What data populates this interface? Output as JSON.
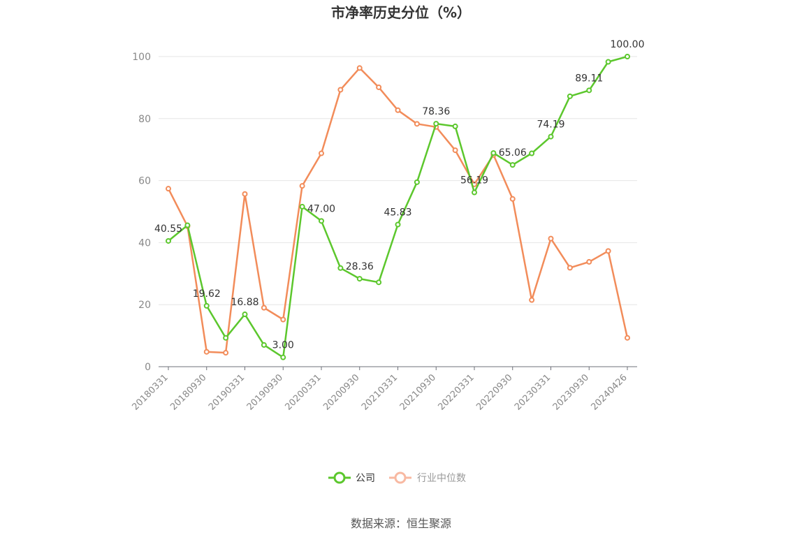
{
  "chart_data": {
    "type": "line",
    "title": "市净率历史分位（%）",
    "ylim": [
      0,
      100
    ],
    "yticks": [
      0,
      20,
      40,
      60,
      80,
      100
    ],
    "x": [
      "20180331",
      "20180630",
      "20180930",
      "20181231",
      "20190331",
      "20190630",
      "20190930",
      "20191231",
      "20200331",
      "20200630",
      "20200930",
      "20201231",
      "20210331",
      "20210630",
      "20210930",
      "20211231",
      "20220331",
      "20220630",
      "20220930",
      "20221231",
      "20230331",
      "20230630",
      "20230930",
      "20231231",
      "20240426"
    ],
    "xtick_labels": [
      "20180331",
      "20180930",
      "20190331",
      "20190930",
      "20200331",
      "20200930",
      "20210331",
      "20210930",
      "20220331",
      "20220930",
      "20230331",
      "20230930",
      "20240426"
    ],
    "grid": true,
    "legend_position": "bottom",
    "series": [
      {
        "name": "公司",
        "color": "#5cc72d",
        "values": [
          40.55,
          45.6,
          19.62,
          9.3,
          16.88,
          7.0,
          3.0,
          51.6,
          47.0,
          31.8,
          28.36,
          27.2,
          45.83,
          59.5,
          78.36,
          77.5,
          56.19,
          68.9,
          65.06,
          68.8,
          74.19,
          87.2,
          89.11,
          98.3,
          100.0
        ],
        "labels": [
          "40.55",
          "",
          "19.62",
          "",
          "16.88",
          "",
          "3.00",
          "",
          "47.00",
          "",
          "28.36",
          "",
          "45.83",
          "",
          "78.36",
          "",
          "56.19",
          "",
          "65.06",
          "",
          "74.19",
          "",
          "89.11",
          "",
          "100.00"
        ]
      },
      {
        "name": "行业中位数",
        "color": "#f28c5a",
        "values": [
          57.4,
          45.3,
          4.8,
          4.5,
          55.7,
          19.0,
          15.2,
          58.3,
          68.8,
          89.3,
          96.3,
          90.1,
          82.7,
          78.3,
          77.3,
          69.8,
          58.8,
          68.3,
          54.1,
          21.5,
          41.3,
          31.9,
          33.8,
          37.3,
          9.3
        ]
      }
    ]
  },
  "legend": {
    "company": "公司",
    "industry": "行业中位数",
    "company_color": "#5cc72d",
    "industry_color": "#f8b9a2",
    "industry_text_color": "#999999",
    "company_text_color": "#333333"
  },
  "source": "数据来源：恒生聚源"
}
